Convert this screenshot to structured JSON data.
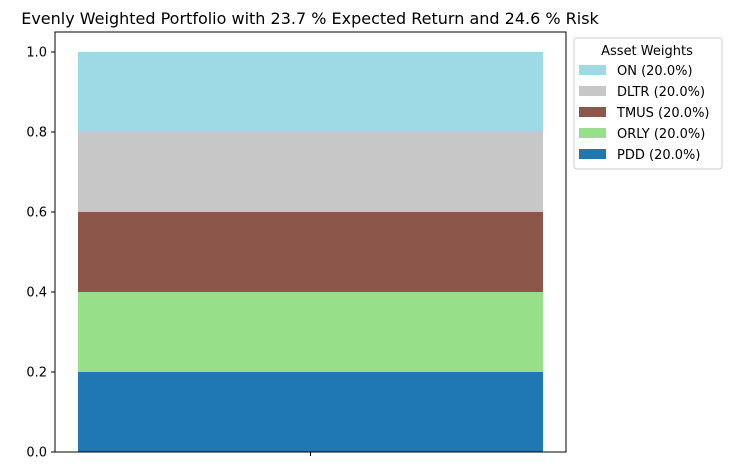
{
  "chart_data": {
    "type": "bar",
    "stacked": true,
    "title": "Evenly Weighted Portfolio with 23.7 % Expected Return and 24.6 % Risk",
    "xlabel": "",
    "ylabel": "",
    "categories": [
      ""
    ],
    "ylim": [
      0,
      1.05
    ],
    "yticks": [
      "0.0",
      "0.2",
      "0.4",
      "0.6",
      "0.8",
      "1.0"
    ],
    "legend_title": "Asset Weights",
    "legend_position": "outside-top-right",
    "series": [
      {
        "name": "PDD (20.0%)",
        "values": [
          0.2
        ],
        "color": "#1f77b4"
      },
      {
        "name": "ORLY (20.0%)",
        "values": [
          0.2
        ],
        "color": "#98df8a"
      },
      {
        "name": "TMUS (20.0%)",
        "values": [
          0.2
        ],
        "color": "#8c564b"
      },
      {
        "name": "DLTR (20.0%)",
        "values": [
          0.2
        ],
        "color": "#c7c7c7"
      },
      {
        "name": "ON (20.0%)",
        "values": [
          0.2
        ],
        "color": "#9edae5"
      }
    ]
  }
}
